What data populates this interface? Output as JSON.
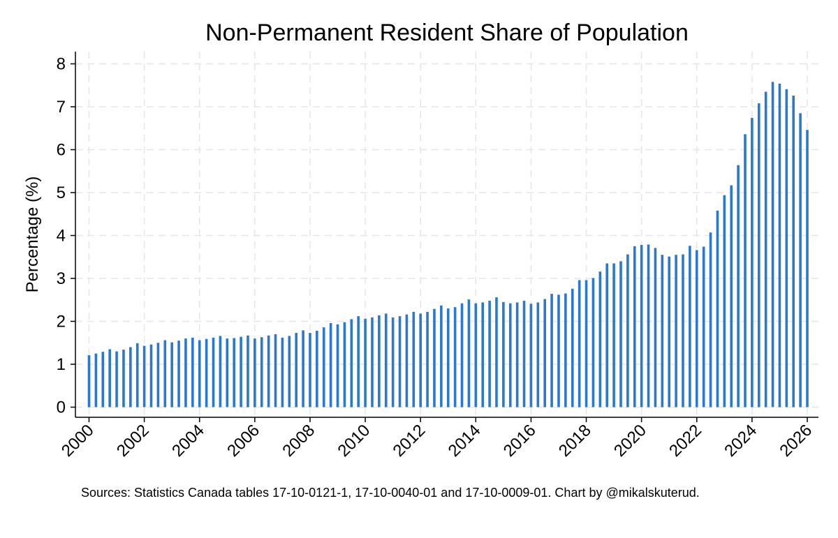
{
  "chart_data": {
    "type": "bar",
    "title": "Non-Permanent Resident Share of Population",
    "xlabel": "",
    "ylabel": "Percentage (%)",
    "ylim": [
      0,
      8
    ],
    "xlim": [
      2000,
      2026
    ],
    "grid": true,
    "bar_color": "#2a78d0",
    "grid_color": "#e6e6e6",
    "y_ticks": [
      0,
      1,
      2,
      3,
      4,
      5,
      6,
      7,
      8
    ],
    "x_ticks": [
      2000,
      2002,
      2004,
      2006,
      2008,
      2010,
      2012,
      2014,
      2016,
      2018,
      2020,
      2022,
      2024,
      2026
    ],
    "x_start": 2000.0,
    "x_step": 0.25,
    "values": [
      1.21,
      1.25,
      1.29,
      1.35,
      1.3,
      1.34,
      1.4,
      1.49,
      1.43,
      1.46,
      1.5,
      1.56,
      1.51,
      1.55,
      1.6,
      1.62,
      1.56,
      1.59,
      1.62,
      1.66,
      1.6,
      1.61,
      1.64,
      1.67,
      1.6,
      1.63,
      1.67,
      1.7,
      1.62,
      1.66,
      1.73,
      1.79,
      1.73,
      1.78,
      1.86,
      1.96,
      1.93,
      1.98,
      2.05,
      2.12,
      2.06,
      2.09,
      2.14,
      2.18,
      2.09,
      2.12,
      2.16,
      2.22,
      2.18,
      2.22,
      2.29,
      2.37,
      2.3,
      2.33,
      2.42,
      2.51,
      2.42,
      2.44,
      2.48,
      2.56,
      2.45,
      2.42,
      2.44,
      2.48,
      2.41,
      2.44,
      2.52,
      2.64,
      2.62,
      2.65,
      2.76,
      2.96,
      2.96,
      3.01,
      3.16,
      3.35,
      3.35,
      3.4,
      3.56,
      3.75,
      3.78,
      3.79,
      3.71,
      3.55,
      3.51,
      3.55,
      3.56,
      3.76,
      3.66,
      3.74,
      4.07,
      4.58,
      4.94,
      5.17,
      5.64,
      6.36,
      6.74,
      7.08,
      7.35,
      7.58,
      7.54,
      7.41,
      7.26,
      6.85,
      6.46
    ]
  },
  "footnote": "Sources: Statistics Canada tables 17-10-0121-1, 17-10-0040-01 and 17-10-0009-01. Chart by @mikalskuterud."
}
